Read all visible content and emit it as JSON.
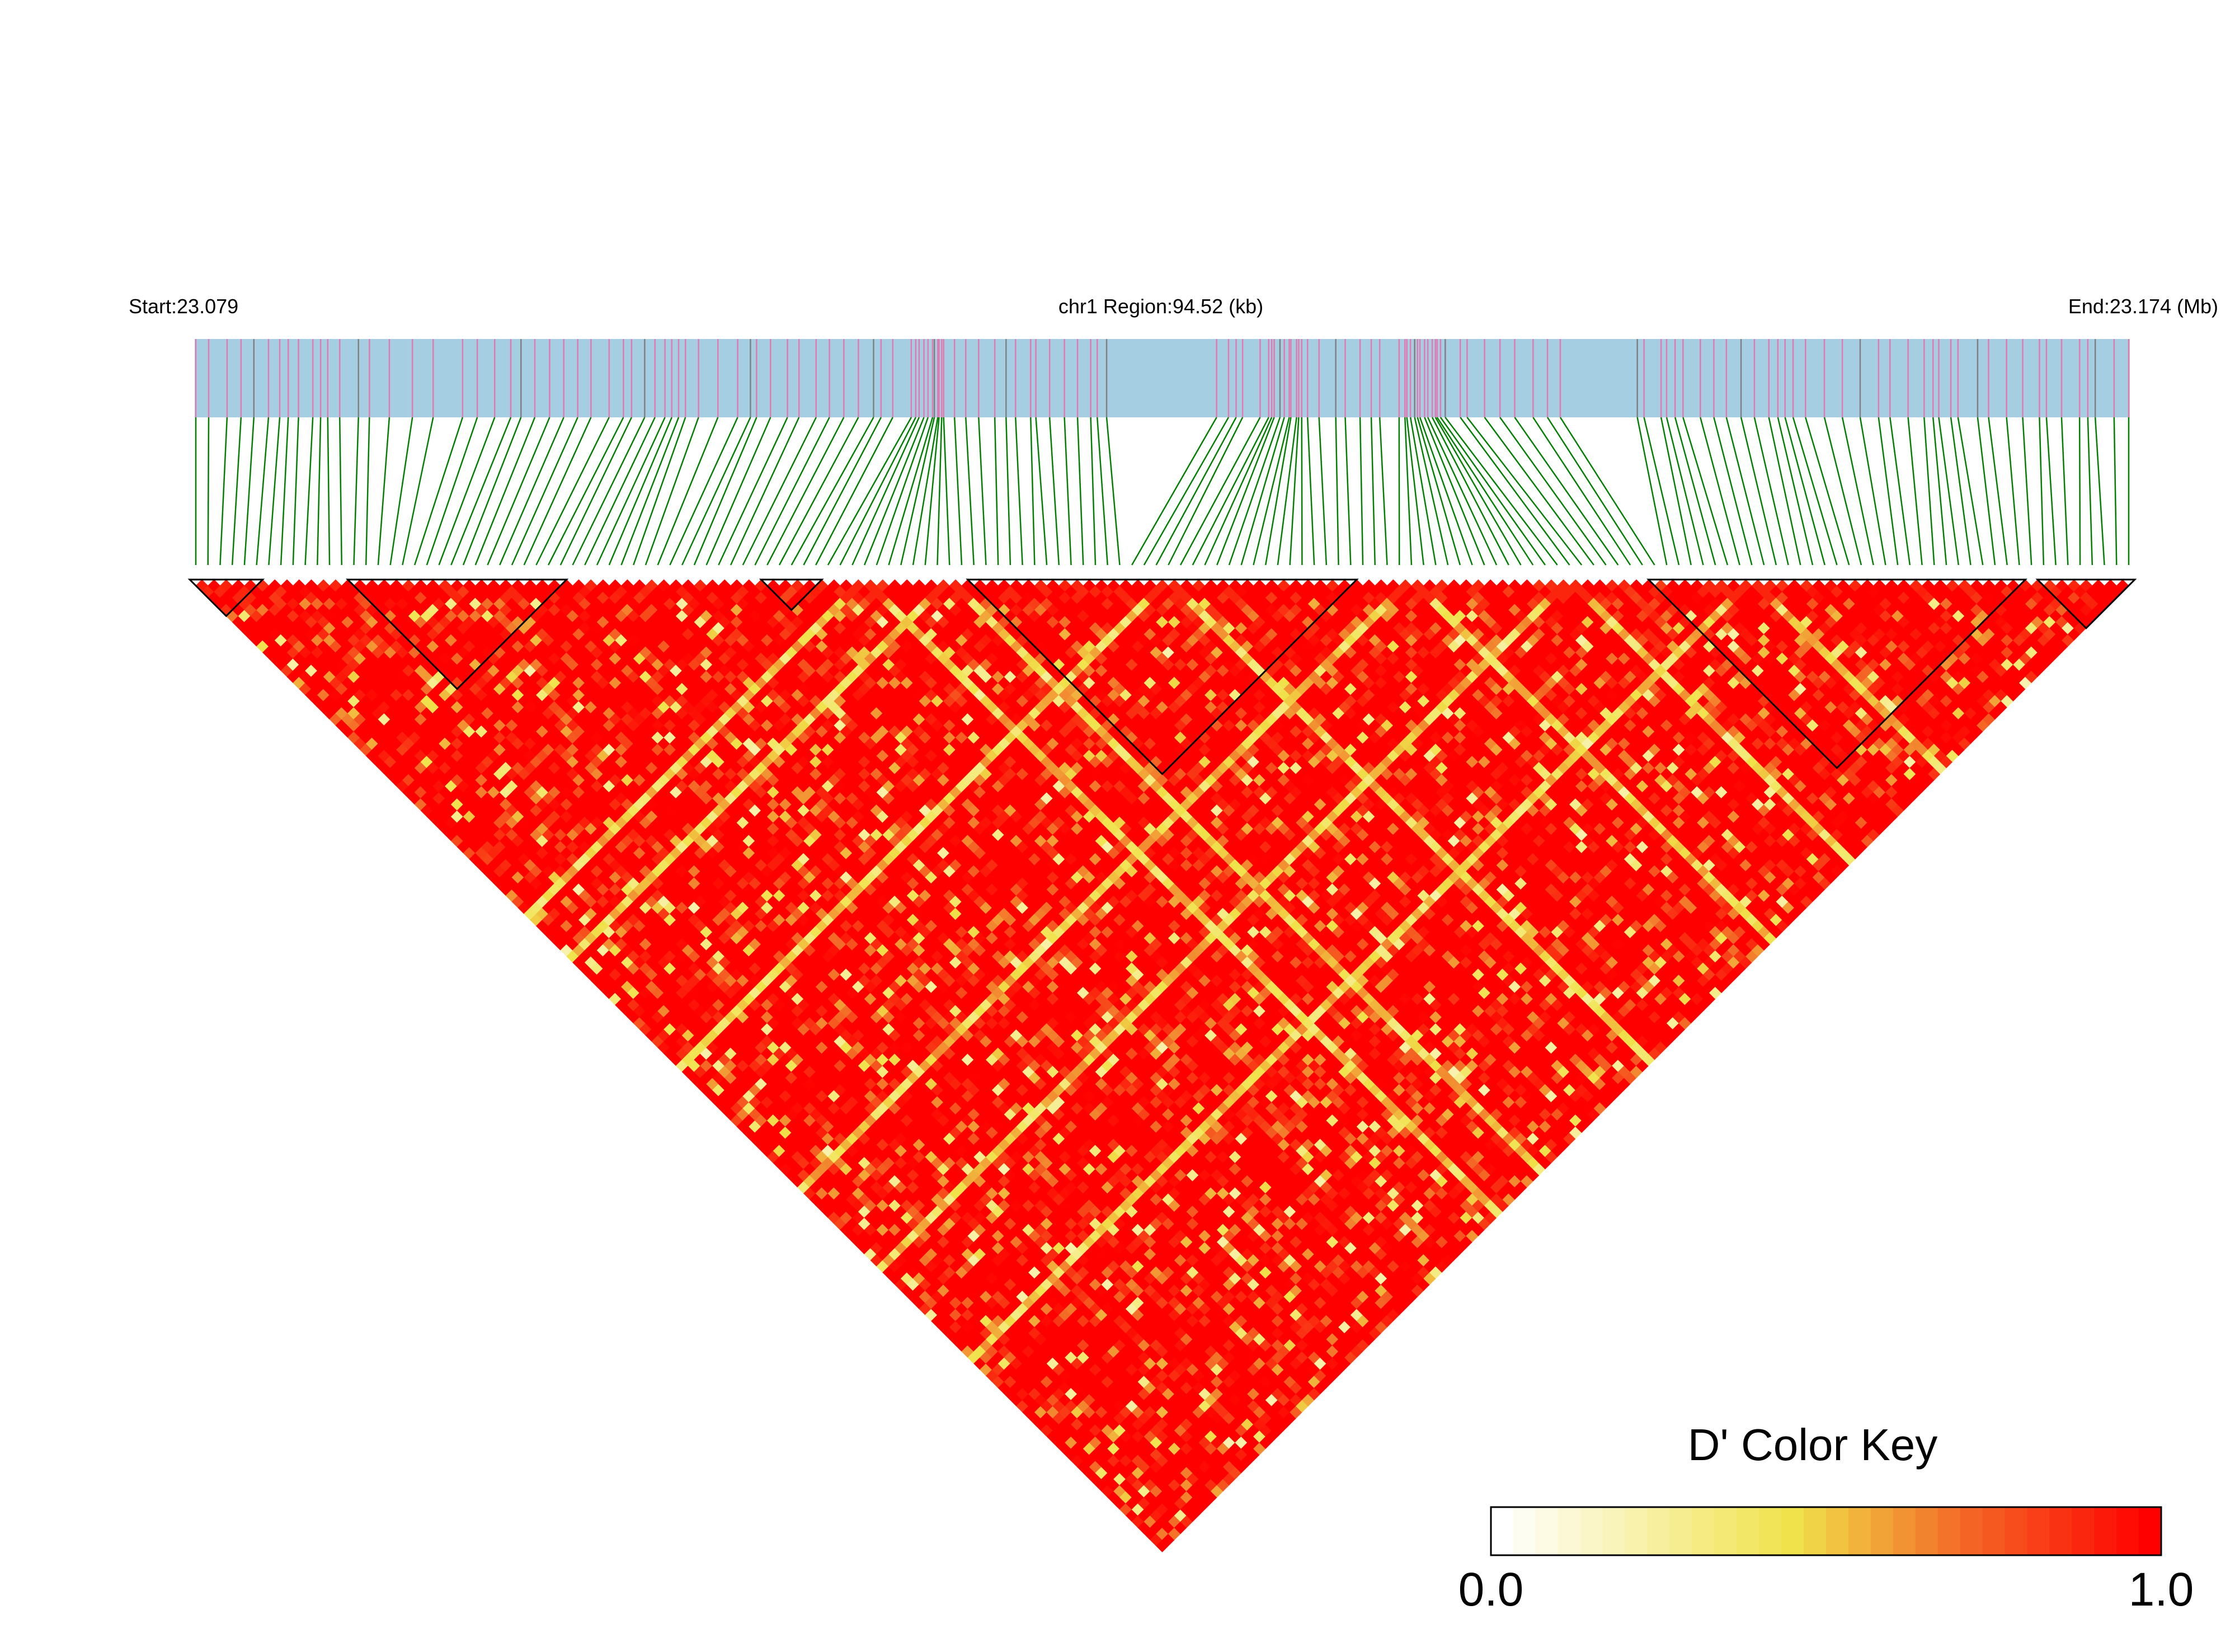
{
  "chart_data": {
    "type": "heatmap",
    "subtype": "linkage-disequilibrium-triangle",
    "header": {
      "start_label": "Start:23.079",
      "region_label": "chr1 Region:94.52 (kb)",
      "end_label": "End:23.174 (Mb)"
    },
    "region": {
      "chromosome": "chr1",
      "start_mb": 23.079,
      "end_mb": 23.174,
      "length_kb": 94.52
    },
    "snp_count": 160,
    "snp_positions_mb": [],
    "value_scale": {
      "metric": "D'",
      "min": 0.0,
      "max": 1.0
    },
    "matrix_summary": {
      "predominant_value": 1.0,
      "low_ld_bands_at_snp_index": [
        55,
        62,
        80,
        100,
        113,
        128
      ],
      "blocks_by_snp_index": [
        [
          0,
          5
        ],
        [
          13,
          30
        ],
        [
          47,
          51
        ],
        [
          64,
          95
        ],
        [
          120,
          150
        ],
        [
          152,
          159
        ]
      ]
    },
    "grid": false,
    "legend": {
      "title": "D' Color Key",
      "min_label": "0.0",
      "max_label": "1.0",
      "position": "bottom-right"
    },
    "colors": {
      "track_background": "#a6cee3",
      "snp_tick_primary": "#e07ab0",
      "snp_tick_secondary": "#808080",
      "connector_lines": "#008000",
      "ld_high": "#ff0000",
      "ld_mid": "#f0e24a",
      "ld_low": "#ffffff",
      "block_outline": "#000000"
    }
  }
}
